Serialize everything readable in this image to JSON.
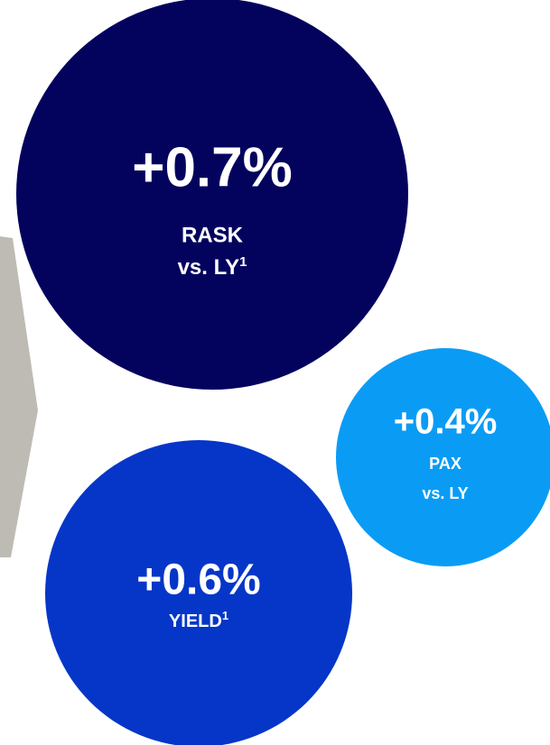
{
  "circles": [
    {
      "value": "+0.7%",
      "label": "RASK",
      "sub": "vs. LY",
      "footnote": "1"
    },
    {
      "value": "+0.4%",
      "label": "PAX",
      "sub": "vs. LY"
    },
    {
      "value": "+0.6%",
      "label": "YIELD",
      "label_footnote": "1"
    }
  ]
}
